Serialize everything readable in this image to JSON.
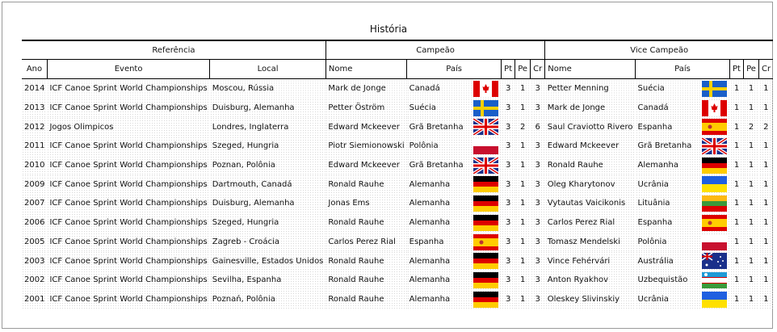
{
  "title": "História",
  "groups": {
    "ref": "Referência",
    "champ": "Campeão",
    "vice": "Vice Campeão"
  },
  "columns": [
    "Ano",
    "Evento",
    "Local",
    "Nome",
    "País",
    "Pt",
    "Pe",
    "Cr",
    "Nome",
    "País",
    "Pt",
    "Pe",
    "Cr"
  ],
  "rows": [
    [
      "2014",
      "ICF Canoe Sprint World Championships",
      "Moscou, Rússia",
      "Mark de Jonge",
      "Canadá",
      "ca",
      "3",
      "1",
      "3",
      "Petter Menning",
      "Suécia",
      "se",
      "1",
      "1",
      "1"
    ],
    [
      "2013",
      "ICF Canoe Sprint World Championships",
      "Duisburg, Alemanha",
      "Petter Öström",
      "Suécia",
      "se",
      "3",
      "1",
      "3",
      "Mark de Jonge",
      "Canadá",
      "ca",
      "1",
      "1",
      "1"
    ],
    [
      "2012",
      "Jogos Olimpicos",
      "Londres, Inglaterra",
      "Edward Mckeever",
      "Grã Bretanha",
      "gb",
      "3",
      "2",
      "6",
      "Saul Craviotto Rivero",
      "Espanha",
      "es",
      "1",
      "2",
      "2"
    ],
    [
      "2011",
      "ICF Canoe Sprint World Championships",
      "Szeged, Hungria",
      "Piotr Siemionowski",
      "Polônia",
      "pl",
      "3",
      "1",
      "3",
      "Edward Mckeever",
      "Grã Bretanha",
      "gb",
      "1",
      "1",
      "1"
    ],
    [
      "2010",
      "ICF Canoe Sprint World Championships",
      "Poznan, Polônia",
      "Edward Mckeever",
      "Grã Bretanha",
      "gb",
      "3",
      "1",
      "3",
      "Ronald Rauhe",
      "Alemanha",
      "de",
      "1",
      "1",
      "1"
    ],
    [
      "2009",
      "ICF Canoe Sprint World Championships",
      "Dartmouth, Canadá",
      "Ronald Rauhe",
      "Alemanha",
      "de",
      "3",
      "1",
      "3",
      "Oleg Kharytonov",
      "Ucrânia",
      "ua",
      "1",
      "1",
      "1"
    ],
    [
      "2007",
      "ICF Canoe Sprint World Championships",
      "Duisburg, Alemanha",
      "Jonas Ems",
      "Alemanha",
      "de",
      "3",
      "1",
      "3",
      "Vytautas Vaicikonis",
      "Lituânia",
      "lt",
      "1",
      "1",
      "1"
    ],
    [
      "2006",
      "ICF Canoe Sprint World Championships",
      "Szeged, Hungria",
      "Ronald Rauhe",
      "Alemanha",
      "de",
      "3",
      "1",
      "3",
      "Carlos Perez Rial",
      "Espanha",
      "es",
      "1",
      "1",
      "1"
    ],
    [
      "2005",
      "ICF Canoe Sprint World Championships",
      "Zagreb - Croácia",
      "Carlos Perez Rial",
      "Espanha",
      "es",
      "3",
      "1",
      "3",
      "Tomasz Mendelski",
      "Polônia",
      "pl",
      "1",
      "1",
      "1"
    ],
    [
      "2003",
      "ICF Canoe Sprint World Championships",
      "Gainesville, Estados Unidos",
      "Ronald Rauhe",
      "Alemanha",
      "de",
      "3",
      "1",
      "3",
      "Vince Fehérvári",
      "Austrália",
      "au",
      "1",
      "1",
      "1"
    ],
    [
      "2002",
      "ICF Canoe Sprint World Championships",
      "Sevilha, Espanha",
      "Ronald Rauhe",
      "Alemanha",
      "de",
      "3",
      "1",
      "3",
      "Anton Ryakhov",
      "Uzbequistão",
      "uz",
      "1",
      "1",
      "1"
    ],
    [
      "2001",
      "ICF Canoe Sprint World Championships",
      "Poznań, Polônia",
      "Ronald Rauhe",
      "Alemanha",
      "de",
      "3",
      "1",
      "3",
      "Oleskey Slivinskiy",
      "Ucrânia",
      "ua",
      "1",
      "1",
      "1"
    ]
  ]
}
